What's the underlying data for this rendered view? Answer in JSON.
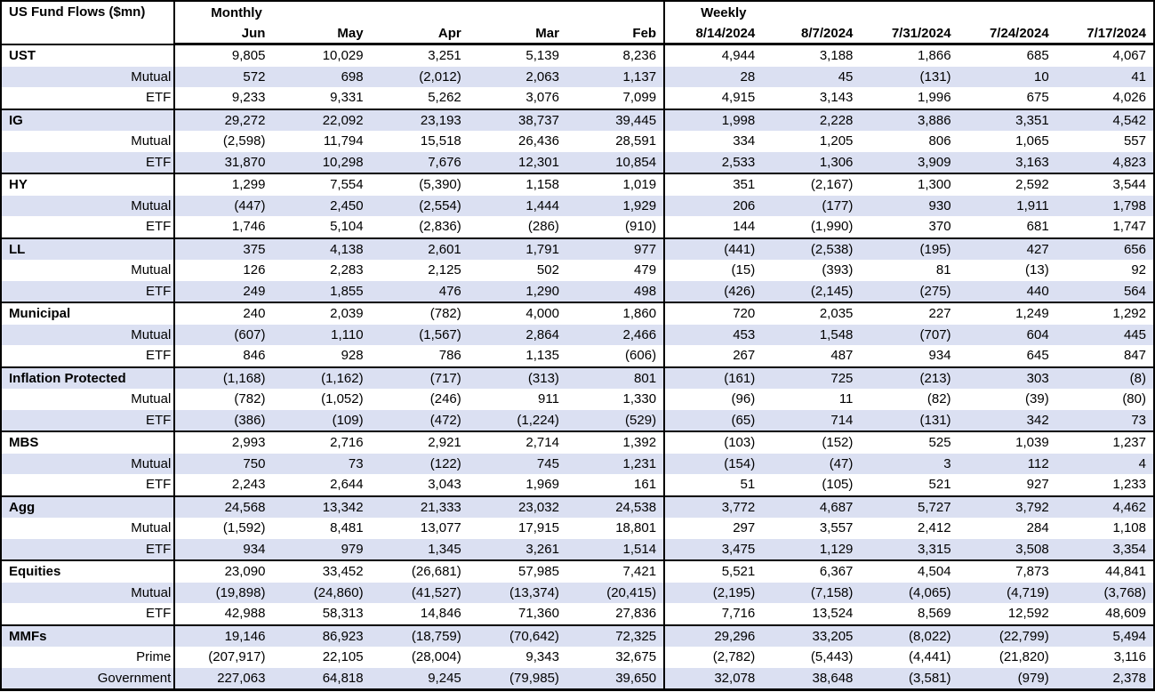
{
  "title": "US Fund Flows ($mn)",
  "sections": {
    "monthly": "Monthly",
    "weekly": "Weekly"
  },
  "monthly_columns": [
    "Jun",
    "May",
    "Apr",
    "Mar",
    "Feb"
  ],
  "weekly_columns": [
    "8/14/2024",
    "8/7/2024",
    "7/31/2024",
    "7/24/2024",
    "7/17/2024"
  ],
  "colors": {
    "row_band": "#dbe0f2",
    "grid": "#000000"
  },
  "groups": [
    {
      "name": "UST",
      "rows": [
        {
          "label": "UST",
          "category": true,
          "monthly": [
            "9,805",
            "10,029",
            "3,251",
            "5,139",
            "8,236"
          ],
          "weekly": [
            "4,944",
            "3,188",
            "1,866",
            "685",
            "4,067"
          ]
        },
        {
          "label": "Mutual",
          "category": false,
          "monthly": [
            "572",
            "698",
            "(2,012)",
            "2,063",
            "1,137"
          ],
          "weekly": [
            "28",
            "45",
            "(131)",
            "10",
            "41"
          ]
        },
        {
          "label": "ETF",
          "category": false,
          "monthly": [
            "9,233",
            "9,331",
            "5,262",
            "3,076",
            "7,099"
          ],
          "weekly": [
            "4,915",
            "3,143",
            "1,996",
            "675",
            "4,026"
          ]
        }
      ]
    },
    {
      "name": "IG",
      "rows": [
        {
          "label": "IG",
          "category": true,
          "monthly": [
            "29,272",
            "22,092",
            "23,193",
            "38,737",
            "39,445"
          ],
          "weekly": [
            "1,998",
            "2,228",
            "3,886",
            "3,351",
            "4,542"
          ]
        },
        {
          "label": "Mutual",
          "category": false,
          "monthly": [
            "(2,598)",
            "11,794",
            "15,518",
            "26,436",
            "28,591"
          ],
          "weekly": [
            "334",
            "1,205",
            "806",
            "1,065",
            "557"
          ]
        },
        {
          "label": "ETF",
          "category": false,
          "monthly": [
            "31,870",
            "10,298",
            "7,676",
            "12,301",
            "10,854"
          ],
          "weekly": [
            "2,533",
            "1,306",
            "3,909",
            "3,163",
            "4,823"
          ]
        }
      ]
    },
    {
      "name": "HY",
      "rows": [
        {
          "label": "HY",
          "category": true,
          "monthly": [
            "1,299",
            "7,554",
            "(5,390)",
            "1,158",
            "1,019"
          ],
          "weekly": [
            "351",
            "(2,167)",
            "1,300",
            "2,592",
            "3,544"
          ]
        },
        {
          "label": "Mutual",
          "category": false,
          "monthly": [
            "(447)",
            "2,450",
            "(2,554)",
            "1,444",
            "1,929"
          ],
          "weekly": [
            "206",
            "(177)",
            "930",
            "1,911",
            "1,798"
          ]
        },
        {
          "label": "ETF",
          "category": false,
          "monthly": [
            "1,746",
            "5,104",
            "(2,836)",
            "(286)",
            "(910)"
          ],
          "weekly": [
            "144",
            "(1,990)",
            "370",
            "681",
            "1,747"
          ]
        }
      ]
    },
    {
      "name": "LL",
      "rows": [
        {
          "label": "LL",
          "category": true,
          "monthly": [
            "375",
            "4,138",
            "2,601",
            "1,791",
            "977"
          ],
          "weekly": [
            "(441)",
            "(2,538)",
            "(195)",
            "427",
            "656"
          ]
        },
        {
          "label": "Mutual",
          "category": false,
          "monthly": [
            "126",
            "2,283",
            "2,125",
            "502",
            "479"
          ],
          "weekly": [
            "(15)",
            "(393)",
            "81",
            "(13)",
            "92"
          ]
        },
        {
          "label": "ETF",
          "category": false,
          "monthly": [
            "249",
            "1,855",
            "476",
            "1,290",
            "498"
          ],
          "weekly": [
            "(426)",
            "(2,145)",
            "(275)",
            "440",
            "564"
          ]
        }
      ]
    },
    {
      "name": "Municipal",
      "rows": [
        {
          "label": "Municipal",
          "category": true,
          "monthly": [
            "240",
            "2,039",
            "(782)",
            "4,000",
            "1,860"
          ],
          "weekly": [
            "720",
            "2,035",
            "227",
            "1,249",
            "1,292"
          ]
        },
        {
          "label": "Mutual",
          "category": false,
          "monthly": [
            "(607)",
            "1,110",
            "(1,567)",
            "2,864",
            "2,466"
          ],
          "weekly": [
            "453",
            "1,548",
            "(707)",
            "604",
            "445"
          ]
        },
        {
          "label": "ETF",
          "category": false,
          "monthly": [
            "846",
            "928",
            "786",
            "1,135",
            "(606)"
          ],
          "weekly": [
            "267",
            "487",
            "934",
            "645",
            "847"
          ]
        }
      ]
    },
    {
      "name": "Inflation Protected",
      "rows": [
        {
          "label": "Inflation Protected",
          "category": true,
          "monthly": [
            "(1,168)",
            "(1,162)",
            "(717)",
            "(313)",
            "801"
          ],
          "weekly": [
            "(161)",
            "725",
            "(213)",
            "303",
            "(8)"
          ]
        },
        {
          "label": "Mutual",
          "category": false,
          "monthly": [
            "(782)",
            "(1,052)",
            "(246)",
            "911",
            "1,330"
          ],
          "weekly": [
            "(96)",
            "11",
            "(82)",
            "(39)",
            "(80)"
          ]
        },
        {
          "label": "ETF",
          "category": false,
          "monthly": [
            "(386)",
            "(109)",
            "(472)",
            "(1,224)",
            "(529)"
          ],
          "weekly": [
            "(65)",
            "714",
            "(131)",
            "342",
            "73"
          ]
        }
      ]
    },
    {
      "name": "MBS",
      "rows": [
        {
          "label": "MBS",
          "category": true,
          "monthly": [
            "2,993",
            "2,716",
            "2,921",
            "2,714",
            "1,392"
          ],
          "weekly": [
            "(103)",
            "(152)",
            "525",
            "1,039",
            "1,237"
          ]
        },
        {
          "label": "Mutual",
          "category": false,
          "monthly": [
            "750",
            "73",
            "(122)",
            "745",
            "1,231"
          ],
          "weekly": [
            "(154)",
            "(47)",
            "3",
            "112",
            "4"
          ]
        },
        {
          "label": "ETF",
          "category": false,
          "monthly": [
            "2,243",
            "2,644",
            "3,043",
            "1,969",
            "161"
          ],
          "weekly": [
            "51",
            "(105)",
            "521",
            "927",
            "1,233"
          ]
        }
      ]
    },
    {
      "name": "Agg",
      "rows": [
        {
          "label": "Agg",
          "category": true,
          "monthly": [
            "24,568",
            "13,342",
            "21,333",
            "23,032",
            "24,538"
          ],
          "weekly": [
            "3,772",
            "4,687",
            "5,727",
            "3,792",
            "4,462"
          ]
        },
        {
          "label": "Mutual",
          "category": false,
          "monthly": [
            "(1,592)",
            "8,481",
            "13,077",
            "17,915",
            "18,801"
          ],
          "weekly": [
            "297",
            "3,557",
            "2,412",
            "284",
            "1,108"
          ]
        },
        {
          "label": "ETF",
          "category": false,
          "monthly": [
            "934",
            "979",
            "1,345",
            "3,261",
            "1,514"
          ],
          "weekly": [
            "3,475",
            "1,129",
            "3,315",
            "3,508",
            "3,354"
          ]
        }
      ]
    },
    {
      "name": "Equities",
      "rows": [
        {
          "label": "Equities",
          "category": true,
          "monthly": [
            "23,090",
            "33,452",
            "(26,681)",
            "57,985",
            "7,421"
          ],
          "weekly": [
            "5,521",
            "6,367",
            "4,504",
            "7,873",
            "44,841"
          ]
        },
        {
          "label": "Mutual",
          "category": false,
          "monthly": [
            "(19,898)",
            "(24,860)",
            "(41,527)",
            "(13,374)",
            "(20,415)"
          ],
          "weekly": [
            "(2,195)",
            "(7,158)",
            "(4,065)",
            "(4,719)",
            "(3,768)"
          ]
        },
        {
          "label": "ETF",
          "category": false,
          "monthly": [
            "42,988",
            "58,313",
            "14,846",
            "71,360",
            "27,836"
          ],
          "weekly": [
            "7,716",
            "13,524",
            "8,569",
            "12,592",
            "48,609"
          ]
        }
      ]
    },
    {
      "name": "MMFs",
      "rows": [
        {
          "label": "MMFs",
          "category": true,
          "monthly": [
            "19,146",
            "86,923",
            "(18,759)",
            "(70,642)",
            "72,325"
          ],
          "weekly": [
            "29,296",
            "33,205",
            "(8,022)",
            "(22,799)",
            "5,494"
          ]
        },
        {
          "label": "Prime",
          "category": false,
          "monthly": [
            "(207,917)",
            "22,105",
            "(28,004)",
            "9,343",
            "32,675"
          ],
          "weekly": [
            "(2,782)",
            "(5,443)",
            "(4,441)",
            "(21,820)",
            "3,116"
          ]
        },
        {
          "label": "Government",
          "category": false,
          "monthly": [
            "227,063",
            "64,818",
            "9,245",
            "(79,985)",
            "39,650"
          ],
          "weekly": [
            "32,078",
            "38,648",
            "(3,581)",
            "(979)",
            "2,378"
          ]
        }
      ]
    }
  ]
}
